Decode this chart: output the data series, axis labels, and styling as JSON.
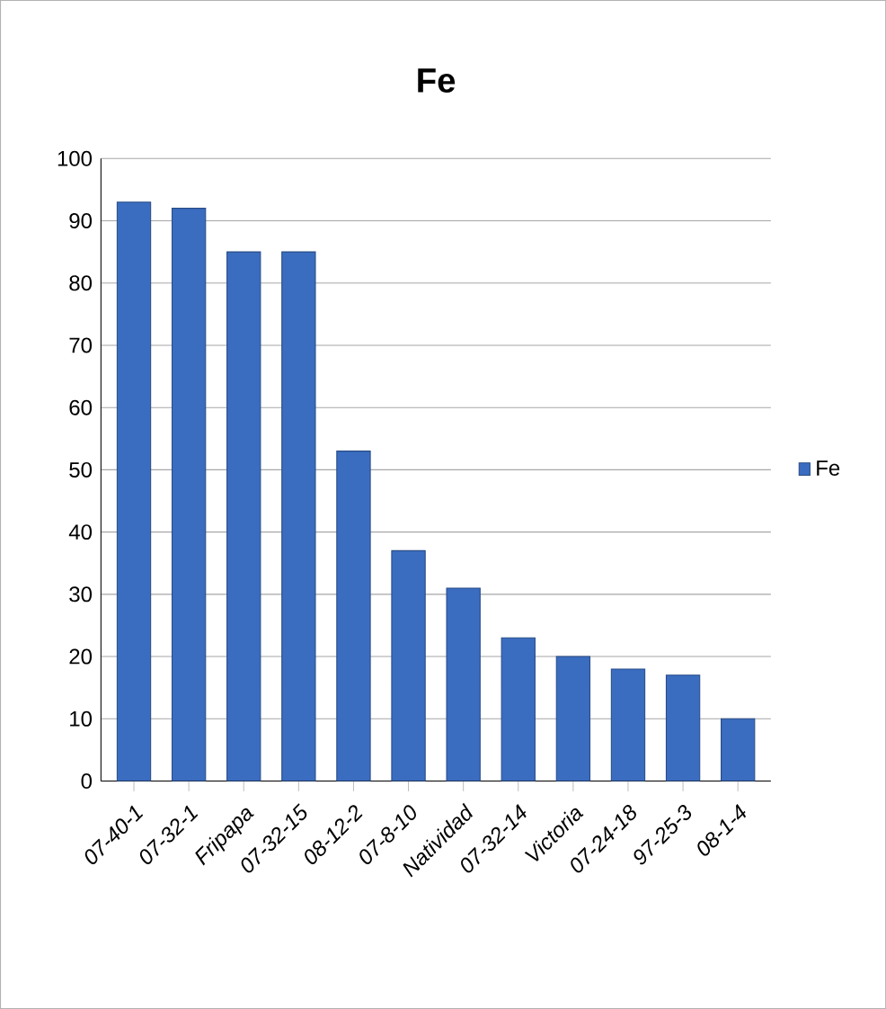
{
  "chart_data": {
    "type": "bar",
    "title": "Fe",
    "categories": [
      "07-40-1",
      "07-32-1",
      "Fripapa",
      "07-32-15",
      "08-12-2",
      "07-8-10",
      "Natividad",
      "07-32-14",
      "Victoria",
      "07-24-18",
      "97-25-3",
      "08-1-4"
    ],
    "series": [
      {
        "name": "Fe",
        "color": "#3a6cc0",
        "values": [
          93,
          92,
          85,
          85,
          53,
          37,
          31,
          23,
          20,
          18,
          17,
          10
        ]
      }
    ],
    "ylim": [
      0,
      100
    ],
    "yticks": [
      0,
      10,
      20,
      30,
      40,
      50,
      60,
      70,
      80,
      90,
      100
    ],
    "grid": "y",
    "legend": "right"
  }
}
